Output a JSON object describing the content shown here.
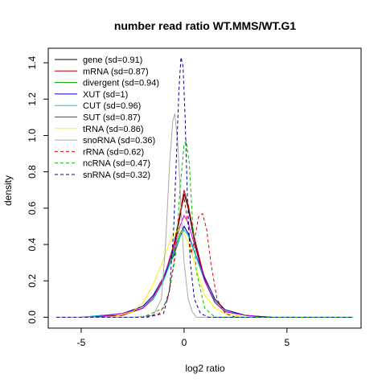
{
  "chart_data": {
    "type": "line",
    "title": "number read ratio WT.MMS/WT.G1",
    "xlabel": "log2 ratio",
    "ylabel": "density",
    "xlim": [
      -6.6,
      8.6
    ],
    "ylim": [
      -0.06,
      1.48
    ],
    "x_ticks": [
      -5,
      0,
      5
    ],
    "x_tick_labels": [
      "-5",
      "0",
      "5"
    ],
    "y_ticks": [
      0.0,
      0.2,
      0.4,
      0.6,
      0.8,
      1.0,
      1.2,
      1.4
    ],
    "y_tick_labels": [
      "0.0",
      "0.2",
      "0.4",
      "0.6",
      "0.8",
      "1.0",
      "1.2",
      "1.4"
    ],
    "grid": false,
    "legend_position": "top-left",
    "series": [
      {
        "name": "gene (sd=0.91)",
        "color": "#000000",
        "dash": "solid",
        "x": [
          -5,
          -3,
          -2,
          -1.5,
          -1,
          -0.5,
          -0.2,
          0,
          0.2,
          0.5,
          1,
          1.5,
          2,
          3,
          4.3
        ],
        "y": [
          0,
          0.01,
          0.05,
          0.1,
          0.2,
          0.38,
          0.55,
          0.68,
          0.6,
          0.42,
          0.2,
          0.08,
          0.03,
          0.01,
          0
        ]
      },
      {
        "name": "mRNA (sd=0.87)",
        "color": "#cc0000",
        "dash": "solid",
        "x": [
          -5,
          -3,
          -2,
          -1.5,
          -1,
          -0.5,
          -0.2,
          0,
          0.2,
          0.5,
          1,
          1.5,
          2,
          3,
          4.2
        ],
        "y": [
          0,
          0.01,
          0.05,
          0.1,
          0.21,
          0.4,
          0.57,
          0.7,
          0.62,
          0.44,
          0.21,
          0.08,
          0.03,
          0.01,
          0
        ]
      },
      {
        "name": "divergent (sd=0.94)",
        "color": "#00a000",
        "dash": "solid",
        "x": [
          -4.5,
          -3,
          -2,
          -1.5,
          -1,
          -0.5,
          -0.2,
          0,
          0.2,
          0.5,
          1,
          1.5,
          2,
          3,
          4
        ],
        "y": [
          0,
          0.02,
          0.06,
          0.12,
          0.22,
          0.36,
          0.46,
          0.5,
          0.46,
          0.36,
          0.2,
          0.09,
          0.04,
          0.01,
          0
        ]
      },
      {
        "name": "XUT (sd=1)",
        "color": "#0000cc",
        "dash": "solid",
        "x": [
          -5,
          -3,
          -2,
          -1.5,
          -1,
          -0.5,
          -0.2,
          0,
          0.2,
          0.5,
          1,
          1.5,
          2,
          3,
          4
        ],
        "y": [
          0,
          0.02,
          0.06,
          0.12,
          0.22,
          0.34,
          0.44,
          0.5,
          0.46,
          0.36,
          0.22,
          0.1,
          0.04,
          0.01,
          0
        ]
      },
      {
        "name": "CUT (sd=0.96)",
        "color": "#00cccc",
        "dash": "solid",
        "x": [
          -5,
          -3,
          -2,
          -1.5,
          -1,
          -0.5,
          -0.2,
          0,
          0.2,
          0.5,
          1,
          1.5,
          2,
          3,
          4
        ],
        "y": [
          0,
          0.02,
          0.05,
          0.1,
          0.2,
          0.35,
          0.44,
          0.48,
          0.45,
          0.36,
          0.2,
          0.08,
          0.03,
          0.01,
          0
        ]
      },
      {
        "name": "SUT (sd=0.87)",
        "color": "#cc00cc",
        "dash": "solid",
        "x": [
          -4.5,
          -3,
          -2,
          -1.5,
          -1,
          -0.5,
          -0.2,
          0,
          0.2,
          0.5,
          1,
          1.5,
          2,
          3,
          4
        ],
        "y": [
          0,
          0.02,
          0.05,
          0.11,
          0.22,
          0.38,
          0.5,
          0.56,
          0.52,
          0.4,
          0.2,
          0.08,
          0.03,
          0.01,
          0
        ]
      },
      {
        "name": "tRNA (sd=0.86)",
        "color": "#ffee00",
        "dash": "solid",
        "x": [
          -3.5,
          -2.5,
          -2,
          -1.5,
          -1,
          -0.6,
          -0.3,
          0,
          0.3,
          0.6,
          1,
          1.5,
          2,
          3
        ],
        "y": [
          0,
          0.03,
          0.08,
          0.18,
          0.32,
          0.44,
          0.48,
          0.46,
          0.38,
          0.26,
          0.12,
          0.05,
          0.02,
          0
        ]
      },
      {
        "name": "snoRNA (sd=0.36)",
        "color": "#aaaaaa",
        "dash": "solid",
        "x": [
          -2.5,
          -1.5,
          -1.1,
          -0.9,
          -0.7,
          -0.55,
          -0.45,
          -0.3,
          -0.15,
          0,
          0.2,
          0.4,
          0.6,
          1.5
        ],
        "y": [
          0,
          0.01,
          0.1,
          0.4,
          0.85,
          1.08,
          1.12,
          0.95,
          0.6,
          0.3,
          0.1,
          0.03,
          0,
          0
        ]
      },
      {
        "name": "rRNA (sd=0.62)",
        "color": "#dd0000",
        "dash": "dashed",
        "x": [
          -2,
          -1.2,
          -0.8,
          -0.5,
          -0.2,
          0,
          0.2,
          0.35,
          0.5,
          0.7,
          0.9,
          1.1,
          1.3,
          1.6,
          2,
          2.5
        ],
        "y": [
          0,
          0.02,
          0.1,
          0.3,
          0.58,
          0.66,
          0.5,
          0.35,
          0.42,
          0.55,
          0.57,
          0.48,
          0.3,
          0.1,
          0.02,
          0
        ]
      },
      {
        "name": "ncRNA (sd=0.47)",
        "color": "#00bb00",
        "dash": "dashed",
        "x": [
          -2,
          -1,
          -0.7,
          -0.4,
          -0.2,
          0,
          0.1,
          0.25,
          0.4,
          0.6,
          1,
          1.5
        ],
        "y": [
          0,
          0.05,
          0.15,
          0.35,
          0.7,
          0.95,
          0.97,
          0.85,
          0.55,
          0.25,
          0.05,
          0
        ]
      },
      {
        "name": "snRNA (sd=0.32)",
        "color": "#000099",
        "dash": "dashed",
        "x": [
          -1.8,
          -1,
          -0.7,
          -0.5,
          -0.35,
          -0.25,
          -0.15,
          -0.05,
          0.05,
          0.15,
          0.3,
          0.5,
          0.8,
          1.2
        ],
        "y": [
          0,
          0.02,
          0.15,
          0.5,
          0.95,
          1.25,
          1.43,
          1.38,
          1.1,
          0.7,
          0.3,
          0.1,
          0.02,
          0
        ]
      }
    ]
  }
}
